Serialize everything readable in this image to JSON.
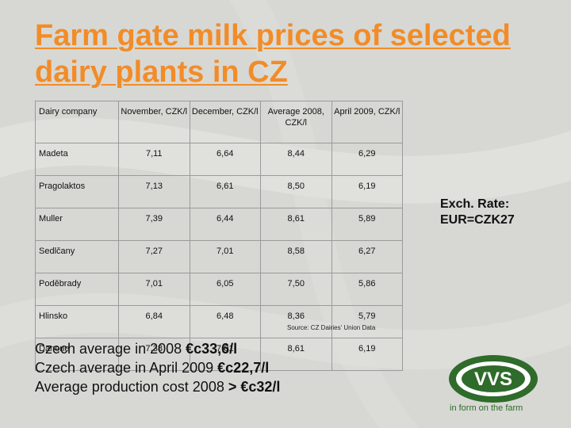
{
  "slide": {
    "title": "Farm gate milk prices of selected dairy plants in CZ",
    "table": {
      "headers": [
        "Dairy company",
        "November, CZK/l",
        "December, CZK/l",
        "Average 2008, CZK/l",
        "April 2009, CZK/l"
      ],
      "rows": [
        {
          "company": "Madeta",
          "nov": "7,11",
          "dec": "6,64",
          "avg2008": "8,44",
          "apr2009": "6,29"
        },
        {
          "company": "Pragolaktos",
          "nov": "7,13",
          "dec": "6,61",
          "avg2008": "8,50",
          "apr2009": "6,19"
        },
        {
          "company": "Muller",
          "nov": "7,39",
          "dec": "6,44",
          "avg2008": "8,61",
          "apr2009": "5,89"
        },
        {
          "company": "Sedlčany",
          "nov": "7,27",
          "dec": "7,01",
          "avg2008": "8,58",
          "apr2009": "6,27"
        },
        {
          "company": "Poděbrady",
          "nov": "7,01",
          "dec": "6,05",
          "avg2008": "7,50",
          "apr2009": "5,86"
        },
        {
          "company": "Hlinsko",
          "nov": "6,84",
          "dec": "6,48",
          "avg2008": "8,36",
          "apr2009": "5,79"
        },
        {
          "company": "Danone",
          "nov": "7,38",
          "dec": "7,01",
          "avg2008": "8,61",
          "apr2009": "6,19"
        }
      ]
    },
    "source": "Source: CZ Dairies' Union Data",
    "summary": [
      {
        "label": "Czech average in 2008 ",
        "value": "€c33,6/l"
      },
      {
        "label": "Czech average in April  2009 ",
        "value": "€c22,7/l"
      },
      {
        "label": "Average production cost 2008 ",
        "value": "> €c32/l"
      }
    ],
    "exchange": {
      "line1": "Exch. Rate:",
      "line2": "EUR=CZK27"
    },
    "logo": {
      "text": "VVS",
      "tagline": "in form on the farm",
      "brand_color": "#2f6b2a"
    },
    "colors": {
      "title": "#f28c28",
      "background": "#d7d8d4"
    }
  }
}
